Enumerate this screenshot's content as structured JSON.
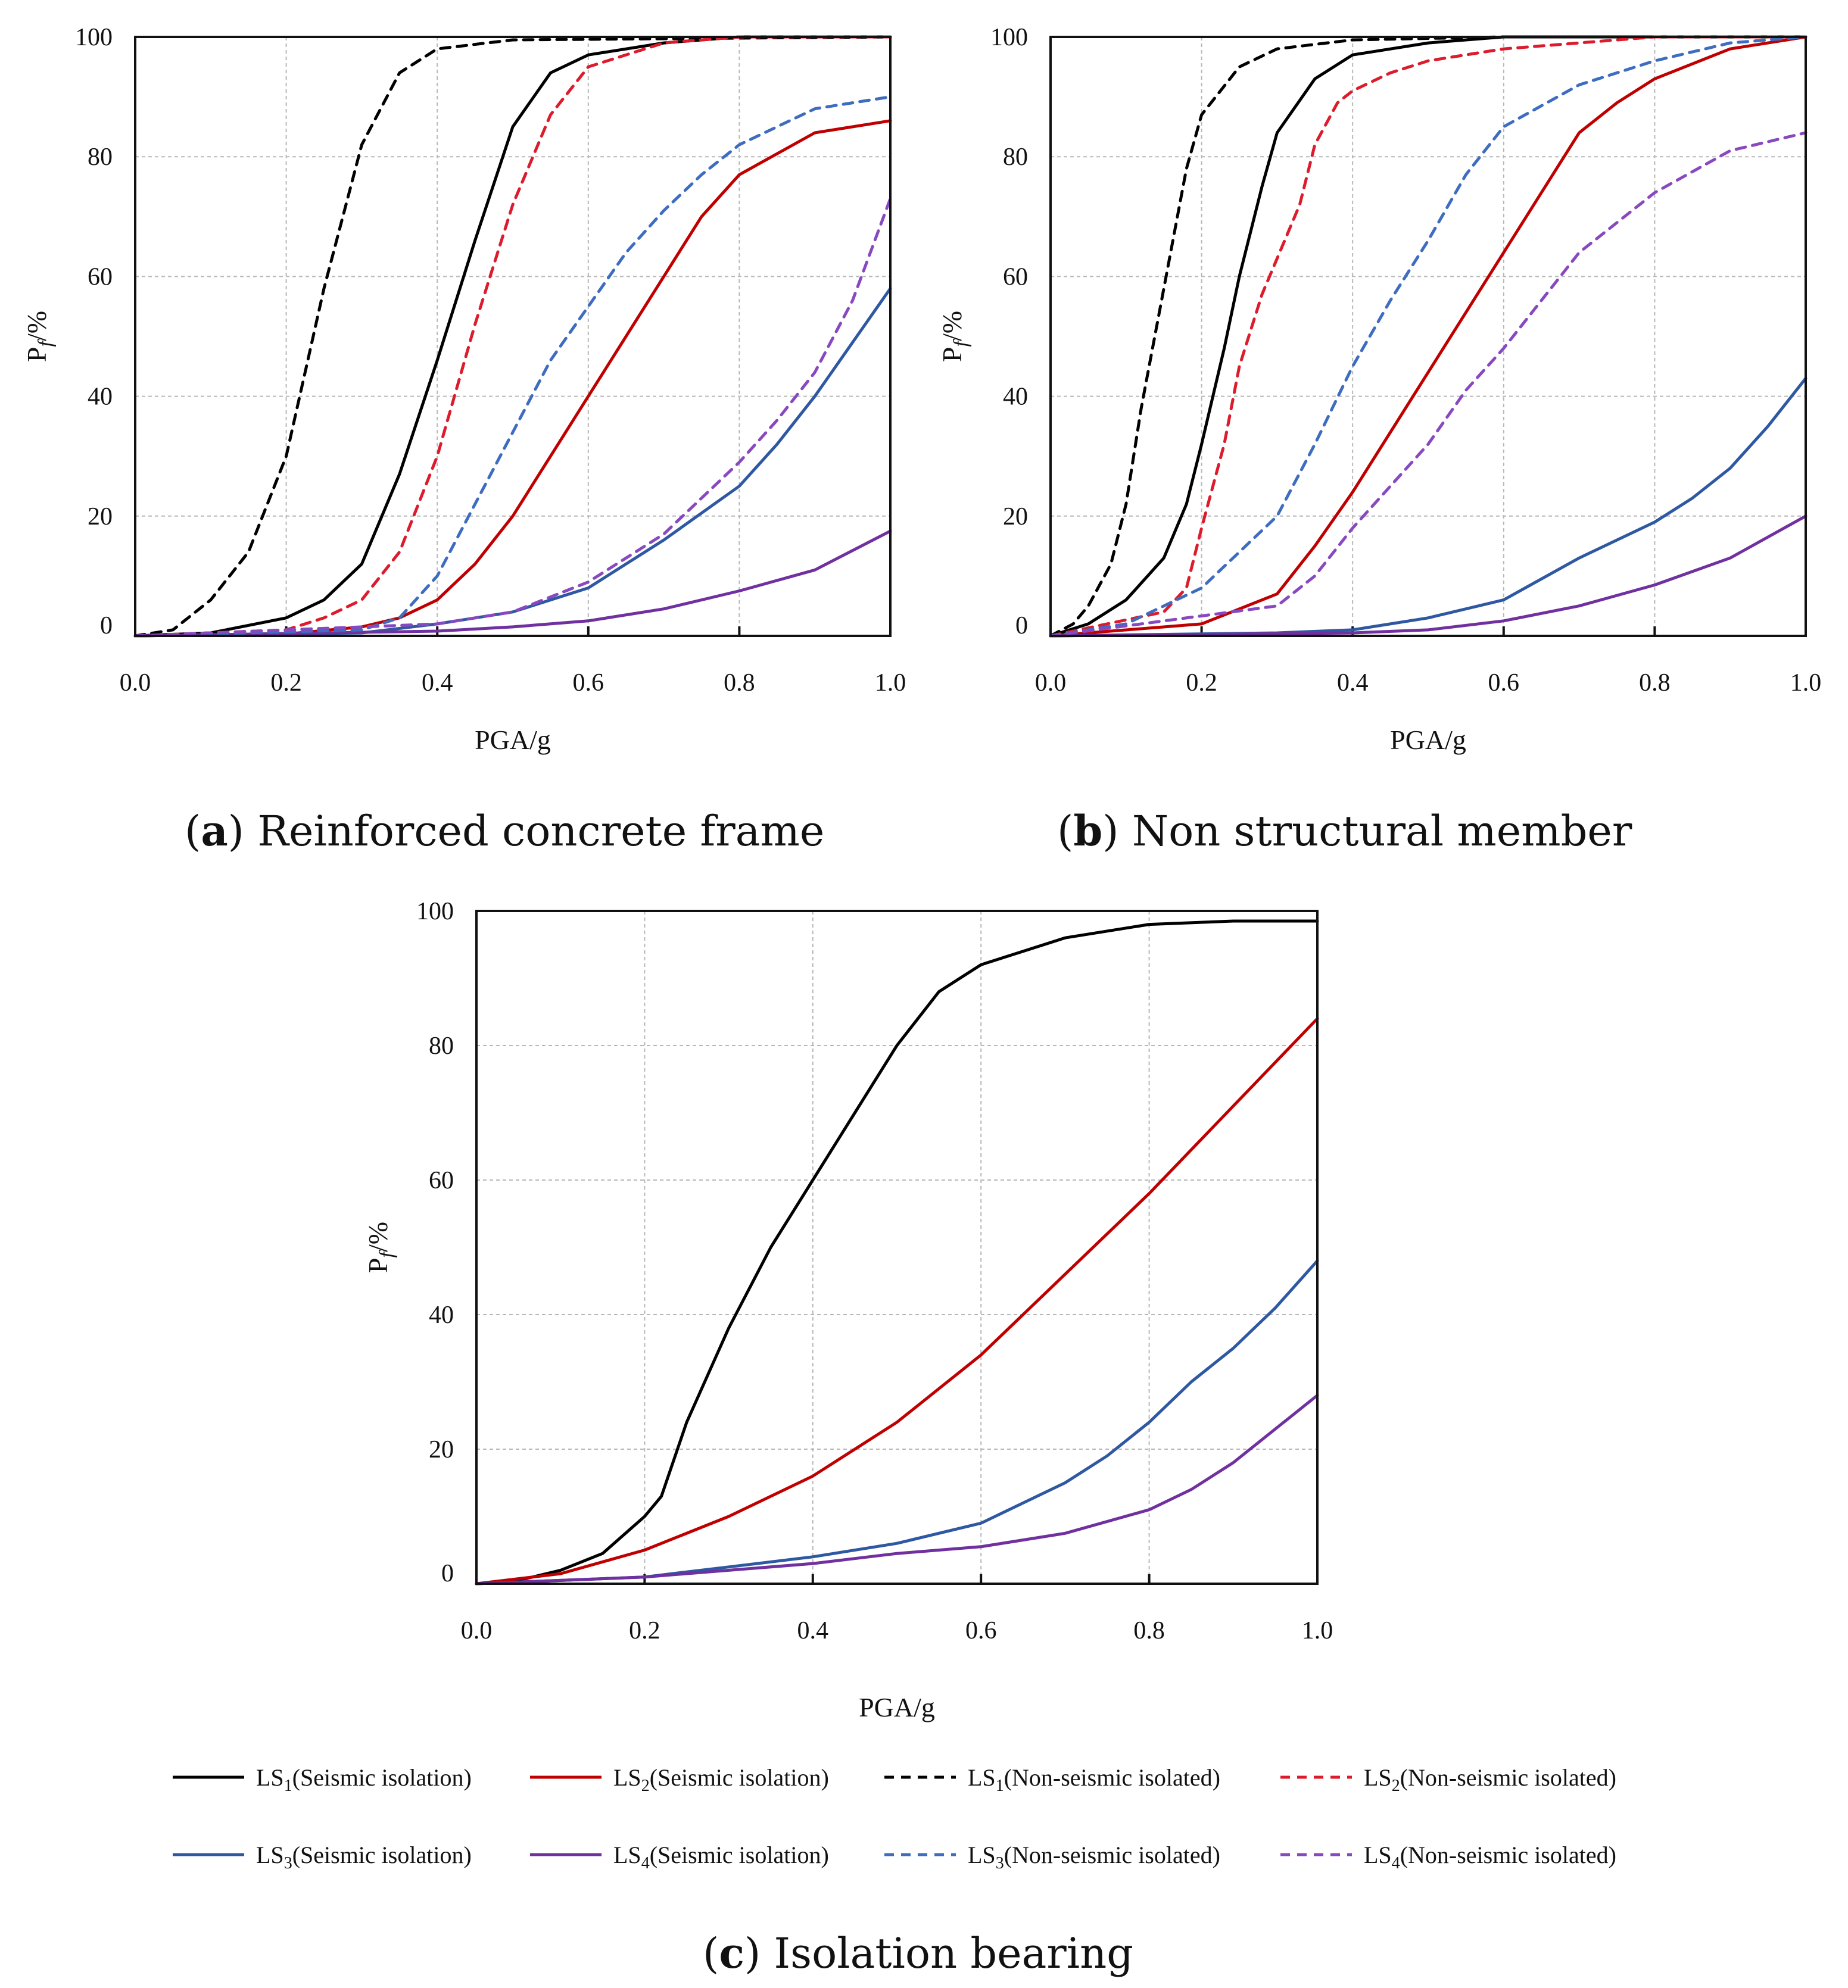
{
  "chart_data": [
    {
      "type": "line",
      "caption_letter": "a",
      "caption_text": "Reinforced concrete frame",
      "xlabel": "PGA/g",
      "ylabel_main": "P",
      "ylabel_sub": "f",
      "ylabel_rest": "/%",
      "xlim": [
        0,
        1
      ],
      "ylim": [
        0,
        100
      ],
      "xticks": [
        "0.0",
        "0.2",
        "0.4",
        "0.6",
        "0.8",
        "1.0"
      ],
      "yticks": [
        "0",
        "20",
        "40",
        "60",
        "80",
        "100"
      ],
      "grid": true,
      "series": [
        {
          "key": "ls1_iso",
          "x": [
            0,
            0.1,
            0.2,
            0.25,
            0.3,
            0.35,
            0.4,
            0.45,
            0.5,
            0.55,
            0.6,
            0.7,
            0.8,
            1.0
          ],
          "y": [
            0,
            0.5,
            3,
            6,
            12,
            27,
            46,
            66,
            85,
            94,
            97,
            99,
            100,
            100
          ]
        },
        {
          "key": "ls2_iso",
          "x": [
            0,
            0.2,
            0.3,
            0.35,
            0.4,
            0.45,
            0.5,
            0.55,
            0.6,
            0.65,
            0.7,
            0.75,
            0.8,
            0.9,
            1.0
          ],
          "y": [
            0,
            0.3,
            1.5,
            3,
            6,
            12,
            20,
            30,
            40,
            50,
            60,
            70,
            77,
            84,
            86
          ]
        },
        {
          "key": "ls3_iso",
          "x": [
            0,
            0.3,
            0.4,
            0.5,
            0.6,
            0.7,
            0.8,
            0.85,
            0.9,
            0.95,
            1.0
          ],
          "y": [
            0,
            0.5,
            2,
            4,
            8,
            16,
            25,
            32,
            40,
            49,
            58
          ]
        },
        {
          "key": "ls4_iso",
          "x": [
            0,
            0.4,
            0.5,
            0.6,
            0.7,
            0.8,
            0.9,
            1.0
          ],
          "y": [
            0,
            0.8,
            1.5,
            2.5,
            4.5,
            7.5,
            11,
            17.5
          ]
        },
        {
          "key": "ls1_non",
          "x": [
            0,
            0.05,
            0.1,
            0.15,
            0.2,
            0.25,
            0.3,
            0.35,
            0.4,
            0.5,
            1.0
          ],
          "y": [
            0,
            1,
            6,
            14,
            30,
            58,
            82,
            94,
            98,
            99.5,
            100
          ]
        },
        {
          "key": "ls2_non",
          "x": [
            0,
            0.2,
            0.25,
            0.3,
            0.35,
            0.4,
            0.45,
            0.5,
            0.55,
            0.6,
            0.7,
            0.8,
            1.0
          ],
          "y": [
            0,
            1,
            3,
            6,
            14,
            30,
            52,
            72,
            87,
            95,
            99,
            100,
            100
          ]
        },
        {
          "key": "ls3_non",
          "x": [
            0,
            0.3,
            0.35,
            0.4,
            0.45,
            0.5,
            0.55,
            0.6,
            0.65,
            0.7,
            0.75,
            0.8,
            0.9,
            1.0
          ],
          "y": [
            0,
            1,
            3,
            10,
            22,
            34,
            46,
            55,
            64,
            71,
            77,
            82,
            88,
            90
          ]
        },
        {
          "key": "ls4_non",
          "x": [
            0,
            0.4,
            0.5,
            0.6,
            0.7,
            0.75,
            0.8,
            0.85,
            0.9,
            0.95,
            1.0
          ],
          "y": [
            0,
            2,
            4,
            9,
            17,
            23,
            29,
            36,
            44,
            56,
            73
          ]
        }
      ]
    },
    {
      "type": "line",
      "caption_letter": "b",
      "caption_text": "Non structural member",
      "xlabel": "PGA/g",
      "ylabel_main": "P",
      "ylabel_sub": "f",
      "ylabel_rest": "/%",
      "xlim": [
        0,
        1
      ],
      "ylim": [
        0,
        100
      ],
      "xticks": [
        "0.0",
        "0.2",
        "0.4",
        "0.6",
        "0.8",
        "1.0"
      ],
      "yticks": [
        "0",
        "20",
        "40",
        "60",
        "80",
        "100"
      ],
      "grid": true,
      "series": [
        {
          "key": "ls1_iso",
          "x": [
            0,
            0.05,
            0.1,
            0.15,
            0.18,
            0.2,
            0.23,
            0.25,
            0.28,
            0.3,
            0.35,
            0.4,
            0.5,
            0.6,
            0.8,
            1.0
          ],
          "y": [
            0,
            2,
            6,
            13,
            22,
            32,
            48,
            60,
            75,
            84,
            93,
            97,
            99,
            100,
            100,
            100
          ]
        },
        {
          "key": "ls2_iso",
          "x": [
            0,
            0.2,
            0.3,
            0.35,
            0.4,
            0.45,
            0.5,
            0.55,
            0.6,
            0.65,
            0.7,
            0.75,
            0.8,
            0.9,
            1.0
          ],
          "y": [
            0,
            2,
            7,
            15,
            24,
            34,
            44,
            54,
            64,
            74,
            84,
            89,
            93,
            98,
            100
          ]
        },
        {
          "key": "ls3_iso",
          "x": [
            0,
            0.3,
            0.4,
            0.5,
            0.6,
            0.7,
            0.8,
            0.85,
            0.9,
            0.95,
            1.0
          ],
          "y": [
            0,
            0.5,
            1,
            3,
            6,
            13,
            19,
            23,
            28,
            35,
            43
          ]
        },
        {
          "key": "ls4_iso",
          "x": [
            0,
            0.4,
            0.5,
            0.6,
            0.7,
            0.8,
            0.9,
            1.0
          ],
          "y": [
            0,
            0.5,
            1,
            2.5,
            5,
            8.5,
            13,
            20
          ]
        },
        {
          "key": "ls1_non",
          "x": [
            0,
            0.03,
            0.05,
            0.08,
            0.1,
            0.12,
            0.15,
            0.18,
            0.2,
            0.25,
            0.3,
            0.4,
            0.6,
            1.0
          ],
          "y": [
            0,
            2,
            5,
            12,
            22,
            38,
            58,
            78,
            87,
            95,
            98,
            99.5,
            100,
            100
          ]
        },
        {
          "key": "ls2_non",
          "x": [
            0,
            0.15,
            0.18,
            0.2,
            0.23,
            0.25,
            0.28,
            0.3,
            0.33,
            0.35,
            0.38,
            0.4,
            0.45,
            0.5,
            0.6,
            0.7,
            0.8,
            1.0
          ],
          "y": [
            0,
            4,
            8,
            18,
            32,
            45,
            57,
            63,
            72,
            82,
            89,
            91,
            94,
            96,
            98,
            99,
            100,
            100
          ]
        },
        {
          "key": "ls3_non",
          "x": [
            0,
            0.1,
            0.2,
            0.3,
            0.35,
            0.4,
            0.45,
            0.5,
            0.55,
            0.6,
            0.7,
            0.8,
            0.9,
            1.0
          ],
          "y": [
            0,
            2,
            8,
            20,
            32,
            45,
            56,
            66,
            77,
            85,
            92,
            96,
            99,
            100
          ]
        },
        {
          "key": "ls4_non",
          "x": [
            0,
            0.3,
            0.35,
            0.4,
            0.45,
            0.5,
            0.55,
            0.6,
            0.65,
            0.7,
            0.8,
            0.9,
            1.0
          ],
          "y": [
            0,
            5,
            10,
            18,
            25,
            32,
            41,
            48,
            56,
            64,
            74,
            81,
            84
          ]
        }
      ]
    },
    {
      "type": "line",
      "caption_letter": "c",
      "caption_text": "Isolation bearing",
      "xlabel": "PGA/g",
      "ylabel_main": "P",
      "ylabel_sub": "f",
      "ylabel_rest": "/%",
      "xlim": [
        0,
        1
      ],
      "ylim": [
        0,
        100
      ],
      "xticks": [
        "0.0",
        "0.2",
        "0.4",
        "0.6",
        "0.8",
        "1.0"
      ],
      "yticks": [
        "0",
        "20",
        "40",
        "60",
        "80",
        "100"
      ],
      "grid": true,
      "series": [
        {
          "key": "ls1_iso",
          "x": [
            0,
            0.05,
            0.1,
            0.15,
            0.2,
            0.22,
            0.25,
            0.3,
            0.35,
            0.4,
            0.45,
            0.5,
            0.55,
            0.6,
            0.7,
            0.8,
            0.9,
            1.0
          ],
          "y": [
            0,
            0.5,
            2,
            4.5,
            10,
            13,
            24,
            38,
            50,
            60,
            70,
            80,
            88,
            92,
            96,
            98,
            98.5,
            98.5
          ]
        },
        {
          "key": "ls2_iso",
          "x": [
            0,
            0.1,
            0.2,
            0.3,
            0.4,
            0.45,
            0.5,
            0.6,
            0.7,
            0.8,
            0.9,
            1.0
          ],
          "y": [
            0,
            1.5,
            5,
            10,
            16,
            20,
            24,
            34,
            46,
            58,
            71,
            84
          ]
        },
        {
          "key": "ls3_iso",
          "x": [
            0,
            0.2,
            0.3,
            0.4,
            0.5,
            0.6,
            0.65,
            0.7,
            0.75,
            0.8,
            0.85,
            0.9,
            0.95,
            1.0
          ],
          "y": [
            0,
            1,
            2.5,
            4,
            6,
            9,
            12,
            15,
            19,
            24,
            30,
            35,
            41,
            48
          ]
        },
        {
          "key": "ls4_iso",
          "x": [
            0,
            0.2,
            0.3,
            0.4,
            0.5,
            0.6,
            0.7,
            0.8,
            0.85,
            0.9,
            0.95,
            1.0
          ],
          "y": [
            0,
            1,
            2,
            3,
            4.5,
            5.5,
            7.5,
            11,
            14,
            18,
            23,
            28
          ]
        }
      ]
    }
  ],
  "legend": [
    {
      "key": "ls1_iso",
      "main": "LS",
      "sub": "1",
      "rest": "(Seismic isolation)",
      "color": "#000000",
      "dashed": false
    },
    {
      "key": "ls2_iso",
      "main": "LS",
      "sub": "2",
      "rest": "(Seismic isolation)",
      "color": "#c00000",
      "dashed": false
    },
    {
      "key": "ls1_non",
      "main": "LS",
      "sub": "1",
      "rest": "(Non-seismic isolated)",
      "color": "#000000",
      "dashed": true
    },
    {
      "key": "ls2_non",
      "main": "LS",
      "sub": "2",
      "rest": "(Non-seismic isolated)",
      "color": "#dc1c2c",
      "dashed": true
    },
    {
      "key": "ls3_iso",
      "main": "LS",
      "sub": "3",
      "rest": "(Seismic isolation)",
      "color": "#2e58a2",
      "dashed": false
    },
    {
      "key": "ls4_iso",
      "main": "LS",
      "sub": "4",
      "rest": "(Seismic isolation)",
      "color": "#7030a0",
      "dashed": false
    },
    {
      "key": "ls3_non",
      "main": "LS",
      "sub": "3",
      "rest": "(Non-seismic isolated)",
      "color": "#3d6cc0",
      "dashed": true
    },
    {
      "key": "ls4_non",
      "main": "LS",
      "sub": "4",
      "rest": "(Non-seismic isolated)",
      "color": "#8848c0",
      "dashed": true
    }
  ]
}
